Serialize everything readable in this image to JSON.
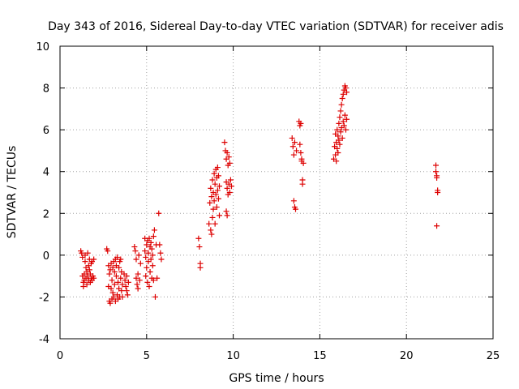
{
  "colors": {
    "marker": "#dd0000",
    "grid": "#a0a0a0",
    "axis": "#000000",
    "background": "#ffffff"
  },
  "chart_data": {
    "type": "scatter",
    "title": "Day 343 of 2016, Sidereal Day-to-day VTEC variation (SDTVAR) for receiver adis",
    "xlabel": "GPS time / hours",
    "ylabel": "SDTVAR / TECUs",
    "xlim": [
      0,
      25
    ],
    "ylim": [
      -4,
      10
    ],
    "xticks": [
      0,
      5,
      10,
      15,
      20,
      25
    ],
    "yticks": [
      -4,
      -2,
      0,
      2,
      4,
      6,
      8,
      10
    ],
    "grid": true,
    "marker": "plus",
    "series": [
      {
        "name": "SDTVAR",
        "points": [
          [
            1.2,
            0.2
          ],
          [
            1.25,
            0.1
          ],
          [
            1.3,
            -0.1
          ],
          [
            1.3,
            -1.0
          ],
          [
            1.35,
            -1.3
          ],
          [
            1.35,
            -1.5
          ],
          [
            1.4,
            -0.9
          ],
          [
            1.4,
            -1.2
          ],
          [
            1.45,
            0.0
          ],
          [
            1.45,
            -0.3
          ],
          [
            1.5,
            -1.1
          ],
          [
            1.5,
            -0.6
          ],
          [
            1.55,
            -1.4
          ],
          [
            1.55,
            -0.8
          ],
          [
            1.6,
            0.1
          ],
          [
            1.6,
            -1.0
          ],
          [
            1.65,
            -0.5
          ],
          [
            1.65,
            -1.2
          ],
          [
            1.7,
            -0.2
          ],
          [
            1.7,
            -0.7
          ],
          [
            1.75,
            -1.3
          ],
          [
            1.75,
            -0.9
          ],
          [
            1.8,
            -1.1
          ],
          [
            1.8,
            -0.4
          ],
          [
            1.85,
            -1.2
          ],
          [
            1.85,
            -0.3
          ],
          [
            1.9,
            -1.0
          ],
          [
            1.95,
            -0.2
          ],
          [
            1.95,
            -1.1
          ],
          [
            2.7,
            0.3
          ],
          [
            2.75,
            0.2
          ],
          [
            2.8,
            -0.5
          ],
          [
            2.8,
            -1.5
          ],
          [
            2.85,
            -2.2
          ],
          [
            2.85,
            -0.9
          ],
          [
            2.9,
            -2.3
          ],
          [
            2.9,
            -0.7
          ],
          [
            2.95,
            -1.6
          ],
          [
            2.95,
            -0.4
          ],
          [
            3.0,
            -2.1
          ],
          [
            3.0,
            -1.2
          ],
          [
            3.05,
            -0.6
          ],
          [
            3.05,
            -1.8
          ],
          [
            3.1,
            -0.3
          ],
          [
            3.1,
            -2.0
          ],
          [
            3.15,
            -1.4
          ],
          [
            3.15,
            -0.8
          ],
          [
            3.2,
            -0.2
          ],
          [
            3.2,
            -2.2
          ],
          [
            3.25,
            -1.0
          ],
          [
            3.25,
            -0.5
          ],
          [
            3.3,
            -1.9
          ],
          [
            3.3,
            -0.1
          ],
          [
            3.35,
            -1.3
          ],
          [
            3.35,
            -2.1
          ],
          [
            3.4,
            -0.6
          ],
          [
            3.4,
            -1.6
          ],
          [
            3.45,
            -0.3
          ],
          [
            3.45,
            -2.0
          ],
          [
            3.5,
            -1.1
          ],
          [
            3.5,
            -0.2
          ],
          [
            3.55,
            -1.7
          ],
          [
            3.55,
            -0.8
          ],
          [
            3.6,
            -2.0
          ],
          [
            3.6,
            -1.4
          ],
          [
            3.7,
            -0.9
          ],
          [
            3.75,
            -1.2
          ],
          [
            3.8,
            -1.5
          ],
          [
            3.85,
            -1.7
          ],
          [
            3.85,
            -1.0
          ],
          [
            3.9,
            -1.9
          ],
          [
            3.95,
            -1.3
          ],
          [
            4.3,
            0.4
          ],
          [
            4.35,
            0.2
          ],
          [
            4.4,
            -0.2
          ],
          [
            4.4,
            -1.1
          ],
          [
            4.45,
            -1.4
          ],
          [
            4.5,
            -0.9
          ],
          [
            4.5,
            -1.6
          ],
          [
            4.55,
            0.0
          ],
          [
            4.6,
            -1.2
          ],
          [
            4.65,
            -0.4
          ],
          [
            4.9,
            0.8
          ],
          [
            4.9,
            0.2
          ],
          [
            4.95,
            -0.1
          ],
          [
            4.95,
            -1.0
          ],
          [
            5.0,
            0.5
          ],
          [
            5.0,
            -0.6
          ],
          [
            5.05,
            0.7
          ],
          [
            5.05,
            -1.3
          ],
          [
            5.1,
            0.1
          ],
          [
            5.1,
            -0.3
          ],
          [
            5.15,
            0.8
          ],
          [
            5.15,
            -1.5
          ],
          [
            5.2,
            -0.8
          ],
          [
            5.2,
            0.4
          ],
          [
            5.25,
            -0.2
          ],
          [
            5.25,
            0.6
          ],
          [
            5.3,
            -1.1
          ],
          [
            5.3,
            0.3
          ],
          [
            5.35,
            -0.5
          ],
          [
            5.35,
            0.0
          ],
          [
            5.4,
            0.9
          ],
          [
            5.4,
            -1.2
          ],
          [
            5.45,
            1.2
          ],
          [
            5.5,
            -2.0
          ],
          [
            5.55,
            0.5
          ],
          [
            5.6,
            -1.1
          ],
          [
            5.7,
            2.0
          ],
          [
            5.75,
            0.5
          ],
          [
            5.8,
            0.1
          ],
          [
            5.85,
            -0.2
          ],
          [
            8.0,
            0.8
          ],
          [
            8.05,
            0.4
          ],
          [
            8.1,
            -0.4
          ],
          [
            8.1,
            -0.6
          ],
          [
            8.6,
            1.5
          ],
          [
            8.65,
            2.5
          ],
          [
            8.7,
            1.2
          ],
          [
            8.7,
            3.2
          ],
          [
            8.75,
            2.8
          ],
          [
            8.75,
            1.0
          ],
          [
            8.8,
            3.6
          ],
          [
            8.8,
            1.8
          ],
          [
            8.85,
            3.0
          ],
          [
            8.85,
            2.2
          ],
          [
            8.9,
            3.9
          ],
          [
            8.9,
            2.6
          ],
          [
            8.95,
            3.4
          ],
          [
            8.95,
            1.5
          ],
          [
            9.0,
            4.1
          ],
          [
            9.0,
            2.9
          ],
          [
            9.05,
            3.7
          ],
          [
            9.05,
            2.3
          ],
          [
            9.1,
            4.2
          ],
          [
            9.1,
            3.1
          ],
          [
            9.15,
            2.7
          ],
          [
            9.15,
            3.8
          ],
          [
            9.2,
            1.9
          ],
          [
            9.2,
            3.3
          ],
          [
            9.5,
            5.4
          ],
          [
            9.55,
            5.0
          ],
          [
            9.6,
            4.6
          ],
          [
            9.6,
            3.5
          ],
          [
            9.65,
            4.9
          ],
          [
            9.65,
            3.2
          ],
          [
            9.7,
            4.3
          ],
          [
            9.7,
            2.9
          ],
          [
            9.75,
            4.7
          ],
          [
            9.75,
            3.4
          ],
          [
            9.8,
            3.0
          ],
          [
            9.8,
            4.4
          ],
          [
            9.85,
            3.6
          ],
          [
            9.9,
            3.3
          ],
          [
            9.6,
            2.1
          ],
          [
            9.65,
            1.9
          ],
          [
            13.4,
            5.6
          ],
          [
            13.45,
            5.2
          ],
          [
            13.5,
            4.8
          ],
          [
            13.5,
            2.6
          ],
          [
            13.55,
            2.3
          ],
          [
            13.55,
            5.4
          ],
          [
            13.6,
            2.2
          ],
          [
            13.65,
            5.0
          ],
          [
            13.8,
            6.4
          ],
          [
            13.85,
            6.2
          ],
          [
            13.85,
            5.3
          ],
          [
            13.9,
            6.3
          ],
          [
            13.9,
            4.9
          ],
          [
            13.95,
            4.5
          ],
          [
            13.95,
            4.6
          ],
          [
            14.0,
            3.4
          ],
          [
            14.0,
            3.6
          ],
          [
            14.05,
            4.4
          ],
          [
            15.8,
            4.6
          ],
          [
            15.85,
            5.2
          ],
          [
            15.9,
            4.8
          ],
          [
            15.9,
            5.8
          ],
          [
            15.95,
            5.4
          ],
          [
            15.95,
            4.5
          ],
          [
            16.0,
            6.0
          ],
          [
            16.0,
            5.1
          ],
          [
            16.05,
            5.7
          ],
          [
            16.05,
            4.9
          ],
          [
            16.1,
            6.3
          ],
          [
            16.1,
            5.5
          ],
          [
            16.15,
            6.6
          ],
          [
            16.15,
            5.3
          ],
          [
            16.2,
            6.9
          ],
          [
            16.2,
            5.9
          ],
          [
            16.25,
            7.2
          ],
          [
            16.25,
            6.1
          ],
          [
            16.3,
            7.5
          ],
          [
            16.3,
            5.6
          ],
          [
            16.35,
            7.7
          ],
          [
            16.35,
            6.4
          ],
          [
            16.4,
            7.9
          ],
          [
            16.4,
            6.2
          ],
          [
            16.45,
            8.1
          ],
          [
            16.45,
            6.7
          ],
          [
            16.5,
            8.0
          ],
          [
            16.5,
            6.0
          ],
          [
            16.55,
            7.8
          ],
          [
            16.55,
            6.5
          ],
          [
            21.7,
            4.3
          ],
          [
            21.7,
            4.0
          ],
          [
            21.75,
            3.8
          ],
          [
            21.75,
            3.7
          ],
          [
            21.8,
            3.1
          ],
          [
            21.8,
            3.0
          ],
          [
            21.75,
            1.4
          ]
        ]
      }
    ]
  }
}
